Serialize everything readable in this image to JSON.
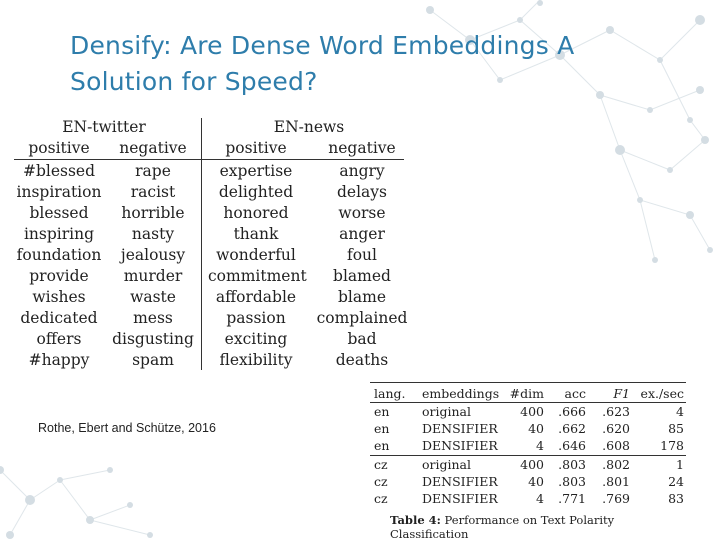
{
  "title": {
    "line1": "Densify: Are Dense Word Embeddings A",
    "line2": "Solution for Speed?"
  },
  "left_table": {
    "groups": [
      "EN-twitter",
      "EN-news"
    ],
    "subheaders": [
      "positive",
      "negative",
      "positive",
      "negative"
    ],
    "rows": [
      [
        "#blessed",
        "rape",
        "expertise",
        "angry"
      ],
      [
        "inspiration",
        "racist",
        "delighted",
        "delays"
      ],
      [
        "blessed",
        "horrible",
        "honored",
        "worse"
      ],
      [
        "inspiring",
        "nasty",
        "thank",
        "anger"
      ],
      [
        "foundation",
        "jealousy",
        "wonderful",
        "foul"
      ],
      [
        "provide",
        "murder",
        "commitment",
        "blamed"
      ],
      [
        "wishes",
        "waste",
        "affordable",
        "blame"
      ],
      [
        "dedicated",
        "mess",
        "passion",
        "complained"
      ],
      [
        "offers",
        "disgusting",
        "exciting",
        "bad"
      ],
      [
        "#happy",
        "spam",
        "flexibility",
        "deaths"
      ]
    ]
  },
  "citation": "Rothe, Ebert and Schütze, 2016",
  "right_table": {
    "headers": [
      "lang.",
      "embeddings",
      "#dim",
      "acc",
      "F1",
      "ex./sec"
    ],
    "rows": [
      [
        "en",
        "original",
        "400",
        ".666",
        ".623",
        "4"
      ],
      [
        "en",
        "DENSIFIER",
        "40",
        ".662",
        ".620",
        "85"
      ],
      [
        "en",
        "DENSIFIER",
        "4",
        ".646",
        ".608",
        "178"
      ],
      [
        "cz",
        "original",
        "400",
        ".803",
        ".802",
        "1"
      ],
      [
        "cz",
        "DENSIFIER",
        "40",
        ".803",
        ".801",
        "24"
      ],
      [
        "cz",
        "DENSIFIER",
        "4",
        ".771",
        ".769",
        "83"
      ]
    ],
    "caption_label": "Table 4:",
    "caption_text": "Performance on Text Polarity Classification"
  },
  "colors": {
    "title": "#2e7dab",
    "decoration": "#d4dde3"
  }
}
